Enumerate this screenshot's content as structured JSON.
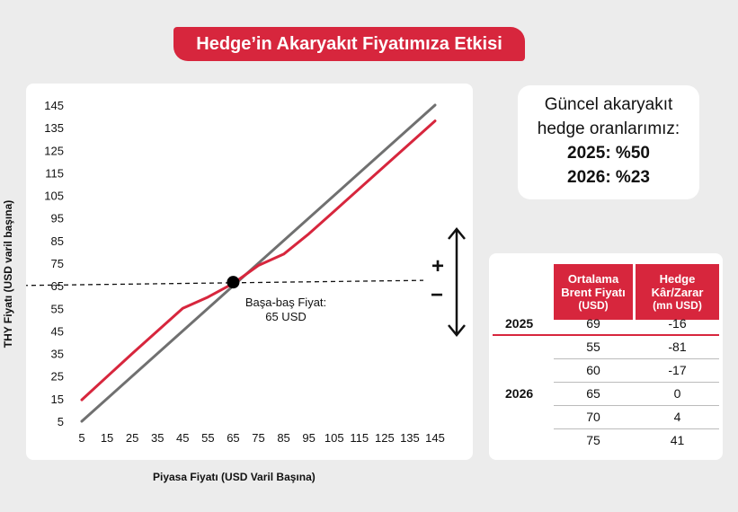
{
  "title": "Hedge’in Akaryakıt Fiyatımıza Etkisi",
  "chart_data": {
    "type": "line",
    "xlabel": "Piyasa Fiyatı (USD Varil Başına)",
    "ylabel": "THY Fiyatı (USD varil başına)",
    "x_ticks": [
      5,
      15,
      25,
      35,
      45,
      55,
      65,
      75,
      85,
      95,
      105,
      115,
      125,
      135,
      145
    ],
    "y_ticks": [
      5,
      15,
      25,
      35,
      45,
      55,
      65,
      75,
      85,
      95,
      105,
      115,
      125,
      135,
      145
    ],
    "xlim": [
      5,
      145
    ],
    "ylim": [
      5,
      145
    ],
    "series": [
      {
        "color": "#707070",
        "x": [
          5,
          145
        ],
        "y": [
          5,
          145
        ]
      },
      {
        "color": "#d7263d",
        "x": [
          5,
          25,
          45,
          55,
          65,
          75,
          85,
          95,
          105,
          125,
          145
        ],
        "y": [
          14.5,
          35,
          55,
          60,
          66,
          74,
          79,
          88,
          98,
          118,
          138
        ]
      }
    ],
    "reference_line": {
      "y": 65,
      "style": "dashed"
    },
    "annotation": {
      "x": 65,
      "y": 65,
      "text_line1": "Başa-baş Fiyat:",
      "text_line2": "65 USD"
    },
    "plus_label": "+",
    "minus_label": "−"
  },
  "hedge_ratios": {
    "line1": "Güncel akaryakıt",
    "line2": "hedge oranlarımız:",
    "line3": "2025: %50",
    "line4": "2026: %23"
  },
  "table": {
    "col1_header": [
      "Ortalama",
      "Brent Fiyatı",
      "(USD)"
    ],
    "col2_header": [
      "Hedge",
      "Kâr/Zarar",
      "(mn USD)"
    ],
    "rows": [
      {
        "year": "2025",
        "price": "69",
        "pnl": "-16"
      },
      {
        "year": "2026",
        "price": "55",
        "pnl": "-81"
      },
      {
        "year": "",
        "price": "60",
        "pnl": "-17"
      },
      {
        "year": "",
        "price": "65",
        "pnl": "0"
      },
      {
        "year": "",
        "price": "70",
        "pnl": "4"
      },
      {
        "year": "",
        "price": "75",
        "pnl": "41"
      }
    ]
  }
}
